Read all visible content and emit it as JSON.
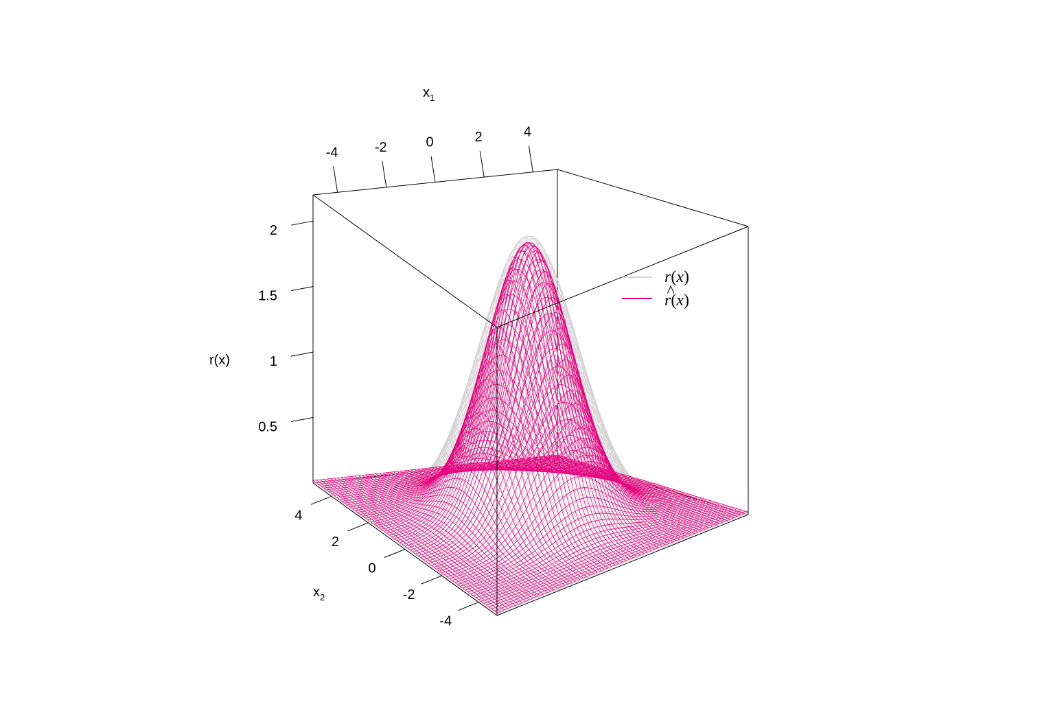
{
  "chart_data": {
    "type": "surface3d",
    "title": "",
    "x1_axis": {
      "label_main": "x",
      "label_sub": "1",
      "ticks": [
        "-4",
        "-2",
        "0",
        "2",
        "4"
      ],
      "range": [
        -5,
        5
      ]
    },
    "x2_axis": {
      "label_main": "x",
      "label_sub": "2",
      "ticks": [
        "4",
        "2",
        "0",
        "-2",
        "-4"
      ],
      "range": [
        -5,
        5
      ]
    },
    "z_axis": {
      "label": "r(x)",
      "ticks": [
        "0.5",
        "1",
        "1.5",
        "2"
      ],
      "range": [
        0,
        2.2
      ]
    },
    "series": [
      {
        "name": "r(x)",
        "color": "#d3d3d3",
        "peak": 2.15,
        "center": [
          0,
          0
        ],
        "spread": 1.6,
        "floor": 0
      },
      {
        "name": "r̂(x)",
        "color": "#e6007e",
        "peak": 2.1,
        "center": [
          0,
          0
        ],
        "spread": 1.4,
        "floor": 0.02
      }
    ],
    "grid": false
  },
  "legend": {
    "position": "top-right",
    "items": [
      {
        "fn": "r",
        "hat": "",
        "arg": "x",
        "color": "#d3d3d3"
      },
      {
        "fn": "r",
        "hat": "^",
        "arg": "x",
        "color": "#e6007e"
      }
    ]
  }
}
